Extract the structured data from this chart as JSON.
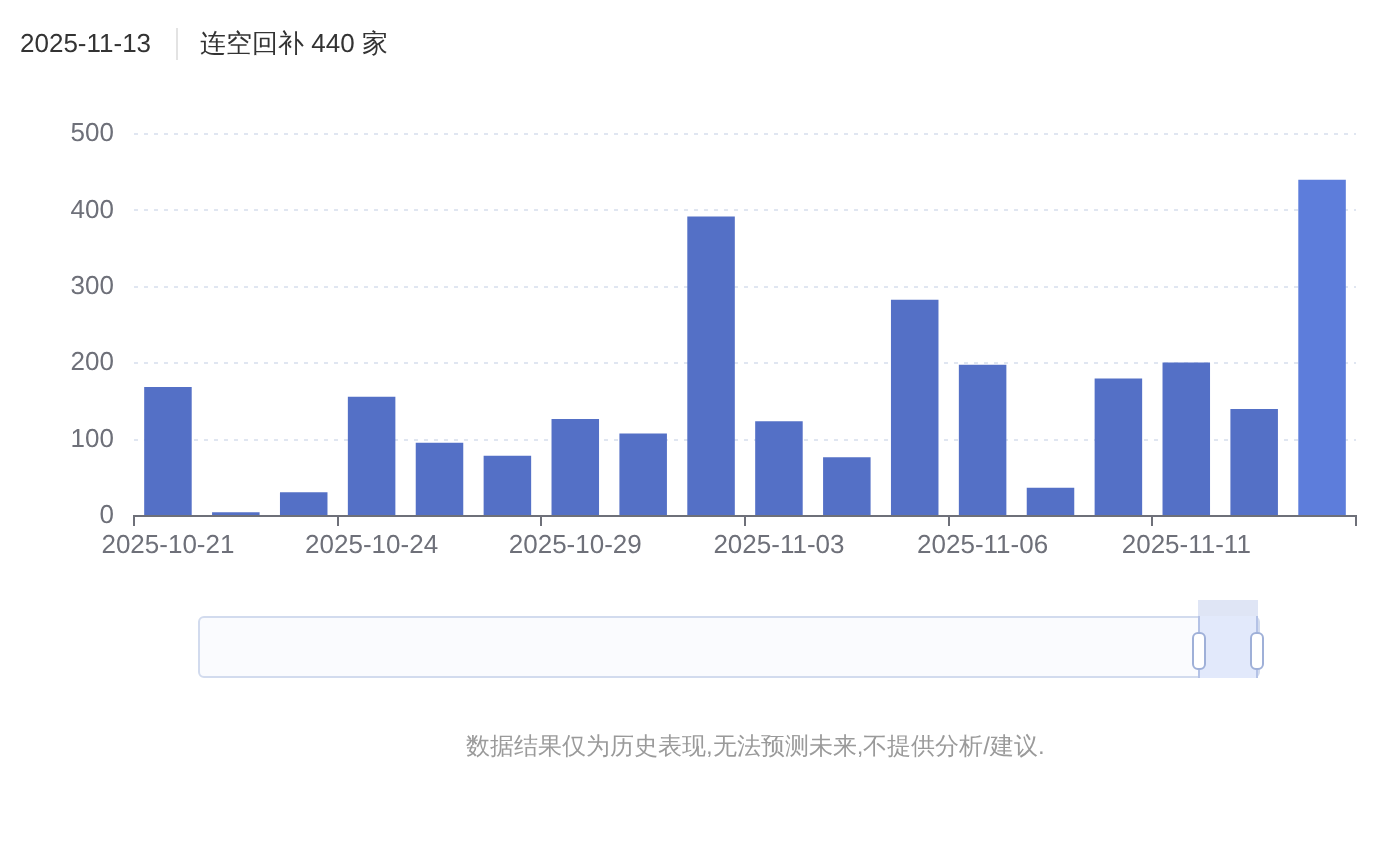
{
  "chart_data": {
    "type": "bar",
    "title": "2025-11-13",
    "subtitle": "连空回补 440 家",
    "categories": [
      "2025-10-21",
      null,
      null,
      "2025-10-24",
      null,
      null,
      "2025-10-29",
      null,
      null,
      "2025-11-03",
      null,
      null,
      "2025-11-06",
      null,
      null,
      "2025-11-11",
      null,
      null
    ],
    "values": [
      169,
      5,
      31,
      156,
      96,
      79,
      127,
      108,
      392,
      124,
      77,
      283,
      198,
      37,
      180,
      201,
      140,
      440
    ],
    "colors": [
      "#5470c6",
      "#5470c6",
      "#5470c6",
      "#5470c6",
      "#5470c6",
      "#5470c6",
      "#5470c6",
      "#5470c6",
      "#5470c6",
      "#5470c6",
      "#5470c6",
      "#5470c6",
      "#5470c6",
      "#5470c6",
      "#5470c6",
      "#5470c6",
      "#5470c6",
      "#5d7ddb"
    ],
    "ylim": [
      0,
      500
    ],
    "yticks": [
      0,
      100,
      200,
      300,
      400,
      500
    ],
    "grid": "y",
    "annotations": [
      "数据结果仅为历史表现,无法预测未来,不提供分析/建议."
    ]
  }
}
